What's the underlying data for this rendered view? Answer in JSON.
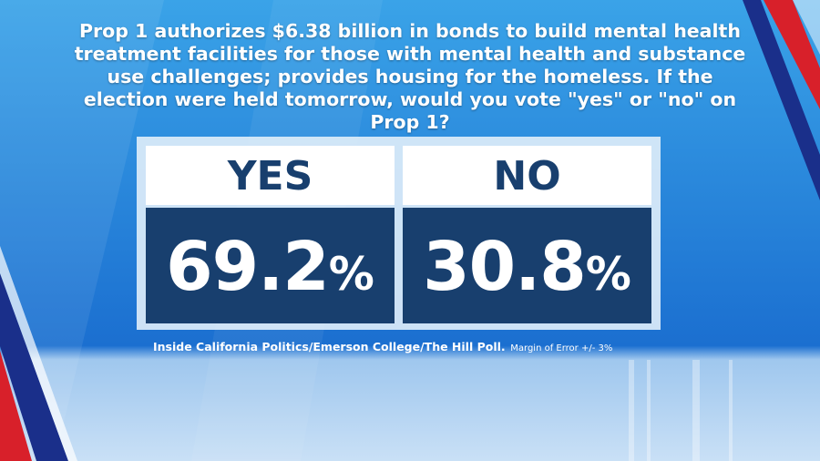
{
  "question": "Prop 1 authorizes $6.38 billion in bonds to build mental health treatment facilities for those with mental health and substance use challenges; provides housing for the homeless. If the election were held tomorrow, would you vote \"yes\" or \"no\" on Prop 1?",
  "results": [
    {
      "label": "YES",
      "value": "69.2",
      "unit": "%"
    },
    {
      "label": "NO",
      "value": "30.8",
      "unit": "%"
    }
  ],
  "source": {
    "poll": "Inside California Politics/Emerson College/The Hill Poll.",
    "margin": "Margin of Error +/- 3%"
  }
}
